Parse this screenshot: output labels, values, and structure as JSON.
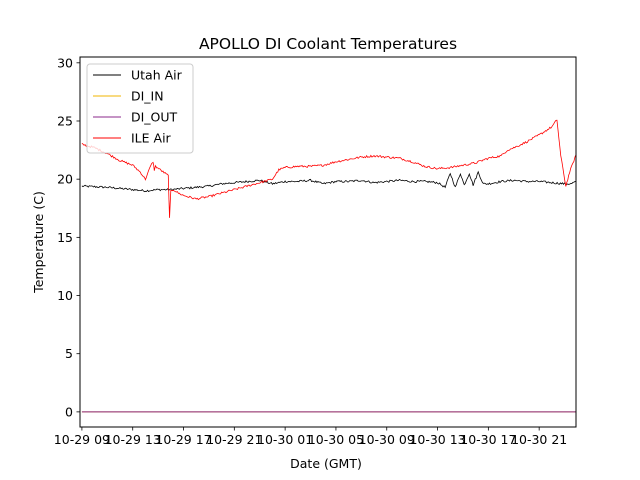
{
  "chart_data": {
    "type": "line",
    "title": "APOLLO DI Coolant Temperatures",
    "xlabel": "Date (GMT)",
    "ylabel": "Temperature (C)",
    "xlim_hours": [
      -0.15,
      38.9
    ],
    "x_unit": "hours since 10-29 09:00 GMT",
    "ylim": [
      -1.3,
      30.5
    ],
    "yticks": [
      0,
      5,
      10,
      15,
      20,
      25,
      30
    ],
    "ytick_labels": [
      "0",
      "5",
      "10",
      "15",
      "20",
      "25",
      "30"
    ],
    "xticks": [
      0,
      4,
      8,
      12,
      16,
      20,
      24,
      28,
      32,
      36
    ],
    "xtick_labels": [
      "10-29 09",
      "10-29 13",
      "10-29 17",
      "10-29 21",
      "10-30 01",
      "10-30 05",
      "10-30 09",
      "10-30 13",
      "10-30 17",
      "10-30 21"
    ],
    "grid": false,
    "legend_position": "top-left",
    "series": [
      {
        "name": "Utah Air",
        "color": "#000000",
        "x": [
          0,
          2,
          4,
          5,
          6,
          7,
          8,
          9,
          10,
          11,
          12,
          13,
          14,
          15,
          16,
          17,
          18,
          19,
          20,
          21,
          22,
          23,
          24,
          25,
          26,
          27,
          28,
          28.6,
          29.0,
          29.4,
          29.8,
          30.1,
          30.5,
          30.8,
          31.2,
          31.6,
          32,
          33,
          34,
          35,
          36,
          37,
          38,
          38.5,
          38.9
        ],
        "y": [
          19.4,
          19.3,
          19.1,
          19.0,
          19.1,
          19.1,
          19.2,
          19.3,
          19.4,
          19.6,
          19.7,
          19.8,
          19.9,
          19.6,
          19.8,
          19.8,
          19.9,
          19.6,
          19.8,
          19.8,
          19.9,
          19.7,
          19.8,
          19.9,
          19.8,
          19.8,
          19.7,
          19.3,
          20.5,
          19.3,
          20.5,
          19.5,
          20.5,
          19.5,
          20.6,
          19.6,
          19.6,
          19.8,
          19.9,
          19.8,
          19.8,
          19.7,
          19.6,
          19.6,
          19.8
        ]
      },
      {
        "name": "DI_IN",
        "color": "#f0b400",
        "x": [
          0,
          38.9
        ],
        "y": [
          0.0,
          0.0
        ]
      },
      {
        "name": "DI_OUT",
        "color": "#8b2a8b",
        "x": [
          0,
          38.9
        ],
        "y": [
          0.0,
          0.0
        ]
      },
      {
        "name": "ILE Air",
        "color": "#ff0000",
        "x": [
          0,
          1,
          2,
          3,
          4,
          4.6,
          5.0,
          5.4,
          5.6,
          5.7,
          5.8,
          6.8,
          6.9,
          7.0,
          7.2,
          7.6,
          8,
          9,
          10,
          11,
          12,
          13,
          14,
          15,
          15.5,
          16,
          17,
          18,
          19,
          20,
          21,
          22,
          23,
          24,
          25,
          26,
          27,
          28,
          29,
          30,
          31,
          32,
          33,
          33.5,
          34,
          35,
          36,
          37,
          37.4,
          37.7,
          38.1,
          38.4,
          38.9
        ],
        "y": [
          23.0,
          22.7,
          22.2,
          21.6,
          21.2,
          20.6,
          20.0,
          21.1,
          21.5,
          20.8,
          21.1,
          20.3,
          16.6,
          19.0,
          19.1,
          18.8,
          18.6,
          18.3,
          18.5,
          18.8,
          19.1,
          19.4,
          19.7,
          20.0,
          20.8,
          21.0,
          21.1,
          21.1,
          21.2,
          21.5,
          21.7,
          21.9,
          22.0,
          21.9,
          21.8,
          21.5,
          21.1,
          20.9,
          21.0,
          21.2,
          21.4,
          21.8,
          22.0,
          22.5,
          22.7,
          23.2,
          23.8,
          24.5,
          25.1,
          22.0,
          19.4,
          20.6,
          22.1
        ]
      }
    ]
  }
}
